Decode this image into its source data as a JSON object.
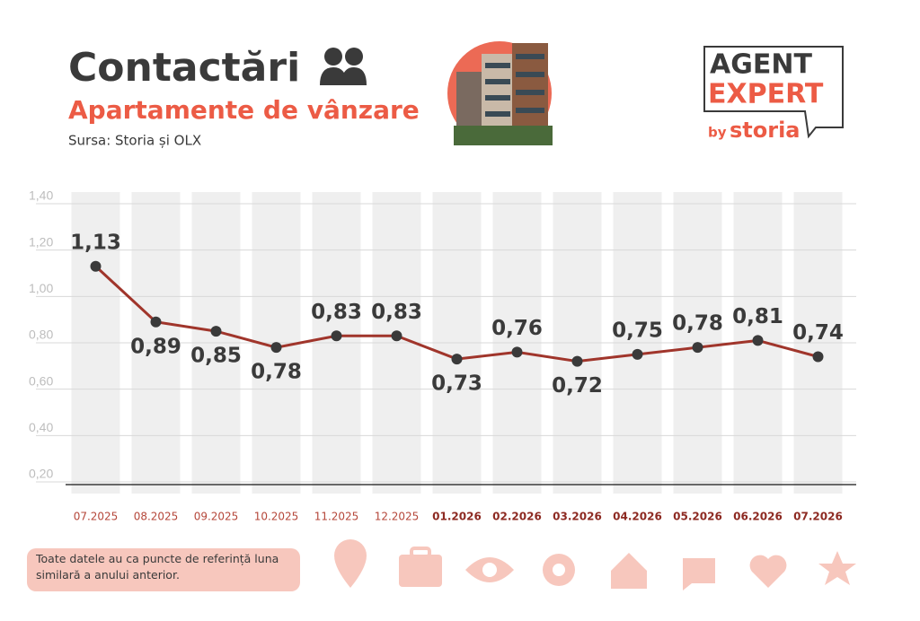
{
  "chart_data": {
    "type": "line",
    "title": "Contactări",
    "subtitle": "Apartamente de vânzare",
    "source": "Sursa: Storia și OLX",
    "note": "Toate datele au ca puncte de referință luna similară a anului anterior.",
    "logo": {
      "line1": "AGENT",
      "line2": "EXPERT",
      "by": "by",
      "brand": "storia"
    },
    "categories": [
      "07.2025",
      "08.2025",
      "09.2025",
      "10.2025",
      "11.2025",
      "12.2025",
      "01.2026",
      "02.2026",
      "03.2026",
      "04.2026",
      "05.2026",
      "06.2026",
      "07.2026"
    ],
    "series": [
      {
        "name": "Contactări",
        "color": "#a0352b",
        "values": [
          1.13,
          0.89,
          0.85,
          0.78,
          0.83,
          0.83,
          0.73,
          0.76,
          0.72,
          0.75,
          0.78,
          0.81,
          0.74
        ],
        "value_labels": [
          "1,13",
          "0,89",
          "0,85",
          "0,78",
          "0,83",
          "0,83",
          "0,73",
          "0,76",
          "0,72",
          "0,75",
          "0,78",
          "0,81",
          "0,74"
        ]
      }
    ],
    "ylim": [
      0.2,
      1.4
    ],
    "yticks": [
      {
        "value": 0.2,
        "label": "0,20"
      },
      {
        "value": 0.4,
        "label": "0,40"
      },
      {
        "value": 0.6,
        "label": "0,60"
      },
      {
        "value": 0.8,
        "label": "0,80"
      },
      {
        "value": 1.0,
        "label": "1,00"
      },
      {
        "value": 1.2,
        "label": "1,20"
      },
      {
        "value": 1.4,
        "label": "1,40"
      }
    ],
    "grid": true
  }
}
